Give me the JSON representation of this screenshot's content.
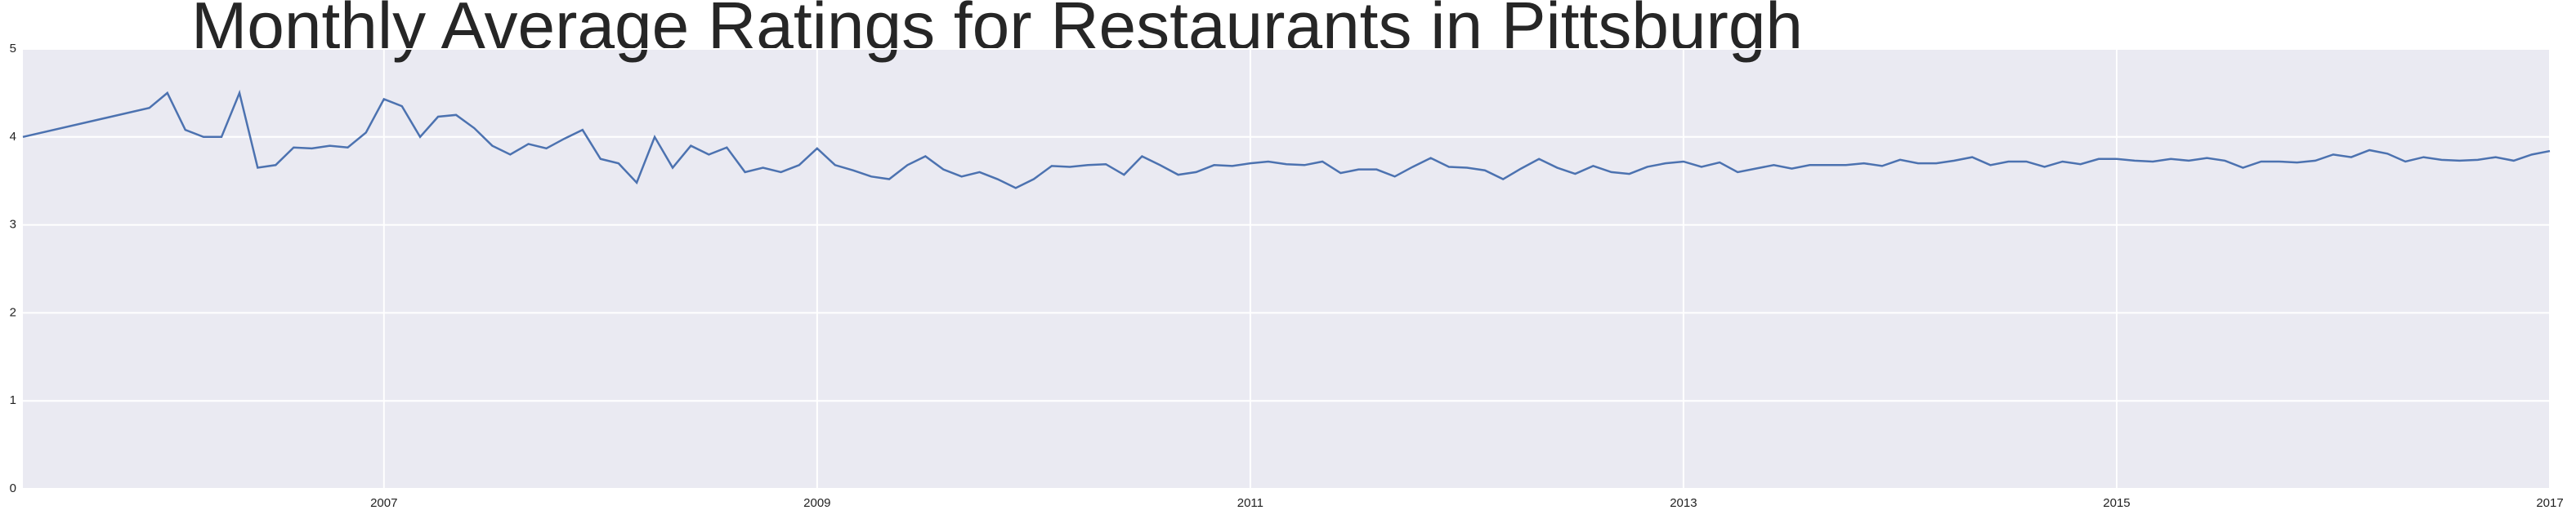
{
  "chart_data": {
    "type": "line",
    "title": "Monthly Average Ratings for Restaurants in Pittsburgh",
    "x": [
      2005.333,
      2005.917,
      2006.0,
      2006.083,
      2006.167,
      2006.25,
      2006.333,
      2006.417,
      2006.5,
      2006.583,
      2006.667,
      2006.75,
      2006.833,
      2006.917,
      2007.0,
      2007.083,
      2007.167,
      2007.25,
      2007.333,
      2007.417,
      2007.5,
      2007.583,
      2007.667,
      2007.75,
      2007.833,
      2007.917,
      2008.0,
      2008.083,
      2008.167,
      2008.25,
      2008.333,
      2008.417,
      2008.5,
      2008.583,
      2008.667,
      2008.75,
      2008.833,
      2008.917,
      2009.0,
      2009.083,
      2009.167,
      2009.25,
      2009.333,
      2009.417,
      2009.5,
      2009.583,
      2009.667,
      2009.75,
      2009.833,
      2009.917,
      2010.0,
      2010.083,
      2010.167,
      2010.25,
      2010.333,
      2010.417,
      2010.5,
      2010.583,
      2010.667,
      2010.75,
      2010.833,
      2010.917,
      2011.0,
      2011.083,
      2011.167,
      2011.25,
      2011.333,
      2011.417,
      2011.5,
      2011.583,
      2011.667,
      2011.75,
      2011.833,
      2011.917,
      2012.0,
      2012.083,
      2012.167,
      2012.25,
      2012.333,
      2012.417,
      2012.5,
      2012.583,
      2012.667,
      2012.75,
      2012.833,
      2012.917,
      2013.0,
      2013.083,
      2013.167,
      2013.25,
      2013.333,
      2013.417,
      2013.5,
      2013.583,
      2013.667,
      2013.75,
      2013.833,
      2013.917,
      2014.0,
      2014.083,
      2014.167,
      2014.25,
      2014.333,
      2014.417,
      2014.5,
      2014.583,
      2014.667,
      2014.75,
      2014.833,
      2014.917,
      2015.0,
      2015.083,
      2015.167,
      2015.25,
      2015.333,
      2015.417,
      2015.5,
      2015.583,
      2015.667,
      2015.75,
      2015.833,
      2015.917,
      2016.0,
      2016.083,
      2016.167,
      2016.25,
      2016.333,
      2016.417,
      2016.5,
      2016.583,
      2016.667,
      2016.75,
      2016.833,
      2016.917,
      2017.0
    ],
    "series": [
      {
        "color": "#4c72b0",
        "values": [
          4.0,
          4.33,
          4.5,
          4.08,
          4.0,
          4.0,
          4.5,
          3.65,
          3.68,
          3.88,
          3.87,
          3.9,
          3.88,
          4.05,
          4.43,
          4.35,
          4.0,
          4.23,
          4.25,
          4.1,
          3.9,
          3.8,
          3.92,
          3.87,
          3.98,
          4.08,
          3.75,
          3.7,
          3.48,
          4.0,
          3.65,
          3.9,
          3.8,
          3.88,
          3.6,
          3.65,
          3.6,
          3.68,
          3.87,
          3.68,
          3.62,
          3.55,
          3.52,
          3.68,
          3.78,
          3.63,
          3.55,
          3.6,
          3.52,
          3.42,
          3.52,
          3.67,
          3.66,
          3.68,
          3.69,
          3.57,
          3.78,
          3.68,
          3.57,
          3.6,
          3.68,
          3.67,
          3.7,
          3.72,
          3.69,
          3.68,
          3.72,
          3.59,
          3.63,
          3.63,
          3.55,
          3.66,
          3.76,
          3.66,
          3.65,
          3.62,
          3.52,
          3.64,
          3.75,
          3.65,
          3.58,
          3.67,
          3.6,
          3.58,
          3.66,
          3.7,
          3.72,
          3.66,
          3.71,
          3.6,
          3.64,
          3.68,
          3.64,
          3.68,
          3.68,
          3.68,
          3.7,
          3.67,
          3.74,
          3.7,
          3.7,
          3.73,
          3.77,
          3.68,
          3.72,
          3.72,
          3.66,
          3.72,
          3.69,
          3.75,
          3.75,
          3.73,
          3.72,
          3.75,
          3.73,
          3.76,
          3.73,
          3.65,
          3.72,
          3.72,
          3.71,
          3.73,
          3.8,
          3.77,
          3.85,
          3.81,
          3.72,
          3.77,
          3.74,
          3.73,
          3.74,
          3.77,
          3.73,
          3.8,
          3.84
        ]
      }
    ],
    "xlim": [
      2005.333,
      2017.0
    ],
    "xticks": [
      2007,
      2009,
      2011,
      2013,
      2015,
      2017
    ],
    "ylim": [
      0,
      5
    ],
    "yticks": [
      0,
      1,
      2,
      3,
      4,
      5
    ],
    "grid": true,
    "background": "#eaeaf2"
  }
}
